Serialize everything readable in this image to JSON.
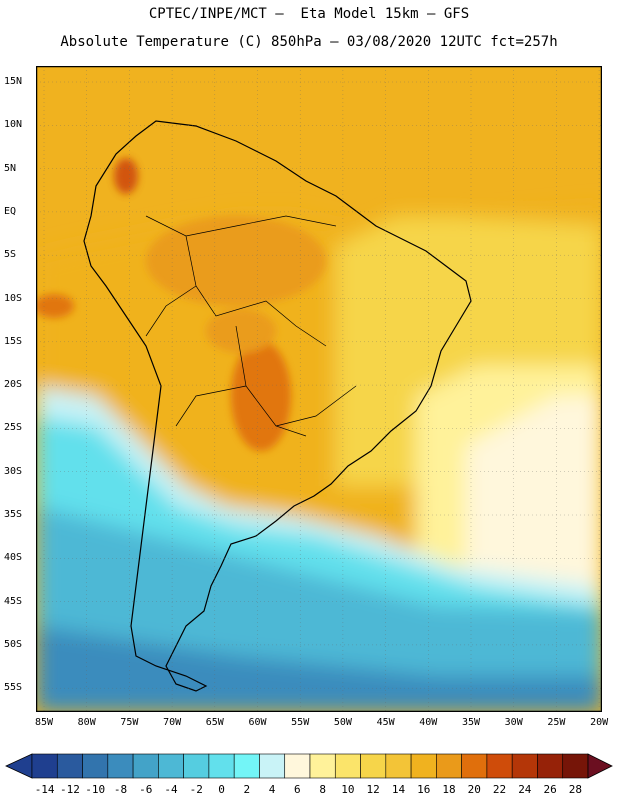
{
  "header": {
    "line1": "CPTEC/INPE/MCT –  Eta Model 15km – GFS",
    "line2": "Absolute Temperature (C) 850hPa – 03/08/2020 12UTC fct=257h"
  },
  "map": {
    "lat_labels": [
      "15N",
      "10N",
      "5N",
      "EQ",
      "5S",
      "10S",
      "15S",
      "20S",
      "25S",
      "30S",
      "35S",
      "40S",
      "45S",
      "50S",
      "55S"
    ],
    "lon_labels": [
      "85W",
      "80W",
      "75W",
      "70W",
      "65W",
      "60W",
      "55W",
      "50W",
      "45W",
      "40W",
      "35W",
      "30W",
      "25W",
      "20W"
    ]
  },
  "colorbar": {
    "labels": [
      "-14",
      "-12",
      "-10",
      "-8",
      "-6",
      "-4",
      "-2",
      "0",
      "2",
      "4",
      "6",
      "8",
      "10",
      "12",
      "14",
      "16",
      "18",
      "20",
      "22",
      "24",
      "26",
      "28"
    ],
    "colors": [
      "#1f3f8f",
      "#2a5a9e",
      "#3274ad",
      "#3b8cbd",
      "#43a3c8",
      "#4db8d5",
      "#55cde0",
      "#62e0ec",
      "#73f5f7",
      "#c9f3f7",
      "#fff7dc",
      "#fff29a",
      "#fbe46a",
      "#f6d54a",
      "#f3c437",
      "#f0b21f",
      "#ea9a1a",
      "#e06f0c",
      "#cf4c0a",
      "#b43608",
      "#962208",
      "#761508"
    ],
    "extend_low_color": "#1f3f8f",
    "extend_high_color": "#6b0f20"
  }
}
